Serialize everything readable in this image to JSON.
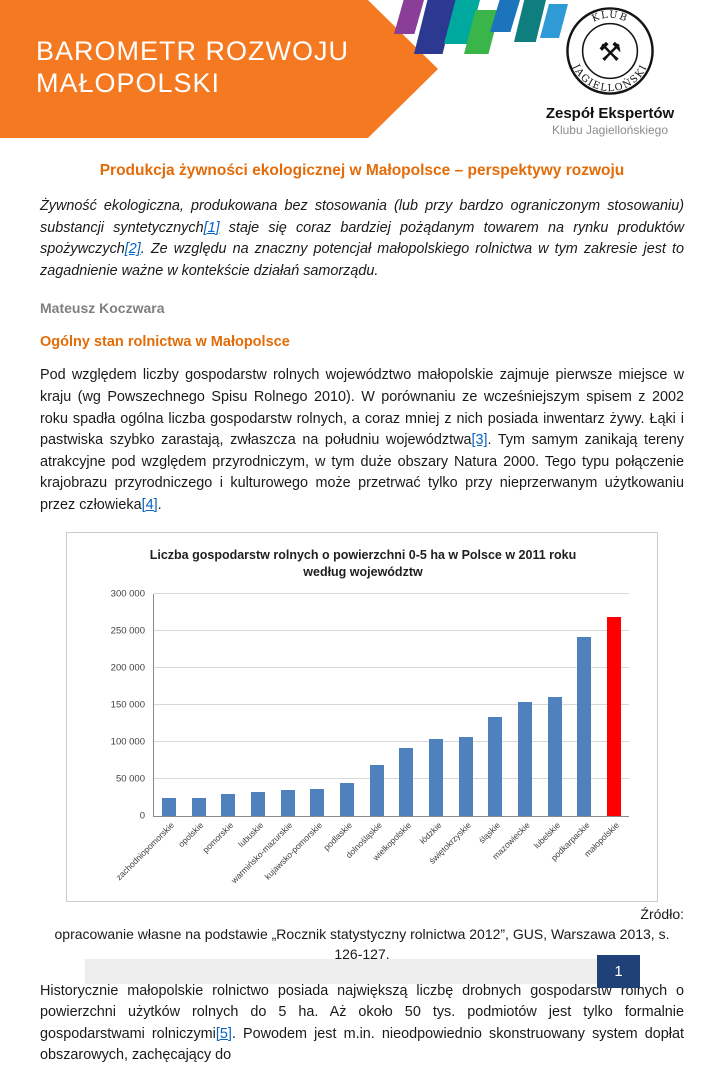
{
  "header": {
    "banner_line1": "BAROMETR ROZWOJU",
    "banner_line2": "MAŁOPOLSKI",
    "ribbon_colors": [
      "#8A3E98",
      "#2B3990",
      "#00A99D",
      "#39B54A",
      "#1C75BC",
      "#0F7E7E",
      "#2E9BD6"
    ],
    "logo": {
      "arc_top": "KLUB",
      "arc_bottom": "JAGIELLOŃSKI",
      "org_line1": "Zespół Ekspertów",
      "org_line2": "Klubu Jagiellońskiego"
    }
  },
  "document": {
    "title": "Produkcja żywności ekologicznej w Małopolsce – perspektywy rozwoju",
    "lead_segments": [
      {
        "text": "Żywność ekologiczna, produkowana bez stosowania (lub przy bardzo ograniczonym stosowaniu) substancji syntetycznych"
      },
      {
        "text": "[1]",
        "link": true
      },
      {
        "text": " staje się coraz bardziej pożądanym towarem na rynku produktów spożywczych"
      },
      {
        "text": "[2]",
        "link": true
      },
      {
        "text": ". Ze względu na znaczny potencjał małopolskiego rolnictwa w tym zakresie jest to zagadnienie ważne w kontekście działań samorządu."
      }
    ],
    "author": "Mateusz Koczwara",
    "section_heading": "Ogólny stan rolnictwa w Małopolsce",
    "para1_segments": [
      {
        "text": "Pod względem liczby gospodarstw rolnych województwo małopolskie zajmuje pierwsze miejsce w kraju (wg Powszechnego Spisu Rolnego 2010). W porównaniu ze wcześniejszym spisem z 2002 roku spadła ogólna liczba gospodarstw rolnych, a coraz mniej z nich posiada inwentarz żywy. Łąki i pastwiska szybko zarastają, zwłaszcza na południu województwa"
      },
      {
        "text": "[3]",
        "link": true
      },
      {
        "text": ". Tym samym zanikają tereny atrakcyjne pod względem przyrodniczym, w tym duże obszary Natura 2000. Tego typu połączenie krajobrazu przyrodniczego i kulturowego może przetrwać tylko przy nieprzerwanym użytkowaniu przez człowieka"
      },
      {
        "text": "[4]",
        "link": true
      },
      {
        "text": "."
      }
    ],
    "para2_segments": [
      {
        "text": "Historycznie małopolskie rolnictwo posiada największą liczbę drobnych gospodarstw rolnych o powierzchni użytków rolnych do 5 ha. Aż około 50 tys. podmiotów jest tylko formalnie gospodarstwami rolniczymi"
      },
      {
        "text": "[5]",
        "link": true
      },
      {
        "text": ". Powodem jest m.in. nieodpowiednio skonstruowany system dopłat obszarowych, zachęcający do"
      }
    ]
  },
  "chart_data": {
    "type": "bar",
    "title": "Liczba gospodarstw rolnych o powierzchni 0-5 ha w Polsce w 2011 roku według województw",
    "categories": [
      "zachodniopomorskie",
      "opolskie",
      "pomorskie",
      "lubuskie",
      "warmińsko-mazurskie",
      "kujawsko-pomorskie",
      "podlaskie",
      "dolnośląskie",
      "wielkopolskie",
      "łódzkie",
      "świętokrzyskie",
      "śląskie",
      "mazowieckie",
      "lubelskie",
      "podkarpackie",
      "małopolskie"
    ],
    "values": [
      24000,
      24500,
      29000,
      32000,
      35000,
      36000,
      44000,
      68000,
      91000,
      103000,
      107000,
      134000,
      153000,
      160000,
      241000,
      268000
    ],
    "bar_color": "#4F81BD",
    "highlight_color": "#FF0000",
    "highlight_index": 15,
    "ylim": [
      0,
      300000
    ],
    "ytick_step": 50000,
    "ytick_labels": [
      "0",
      "50 000",
      "100 000",
      "150 000",
      "200 000",
      "250 000",
      "300 000"
    ],
    "grid": true,
    "legend": "none",
    "xlabel": "",
    "ylabel": ""
  },
  "source": {
    "label": "Źródło:",
    "text": "opracowanie własne na podstawie „Rocznik statystyczny rolnictwa 2012”, GUS, Warszawa 2013, s. 126-127."
  },
  "footer": {
    "page_number": "1"
  }
}
